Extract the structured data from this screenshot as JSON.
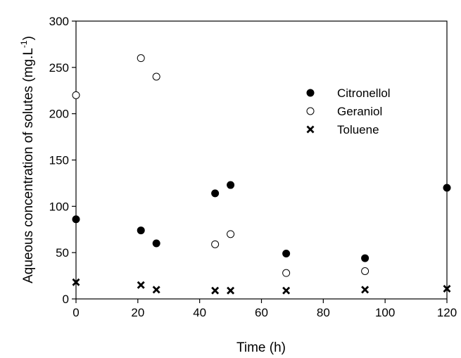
{
  "chart_data": {
    "type": "scatter",
    "title": "",
    "xlabel": "Time (h)",
    "ylabel_main": "Aqueous concentration of solutes (mg.L",
    "ylabel_sup": "-1",
    "ylabel_close": ")",
    "xlim": [
      0,
      120
    ],
    "ylim": [
      0,
      300
    ],
    "xticks": [
      0,
      20,
      40,
      60,
      80,
      100,
      120
    ],
    "yticks": [
      0,
      50,
      100,
      150,
      200,
      250,
      300
    ],
    "grid": false,
    "legend_position": "upper-right",
    "series": [
      {
        "name": "Citronellol",
        "marker": "filled-circle",
        "color": "#000000",
        "x": [
          0,
          21,
          26,
          45,
          50,
          68,
          93.5,
          120
        ],
        "y": [
          86,
          74,
          60,
          114,
          123,
          49,
          44,
          120
        ]
      },
      {
        "name": "Geraniol",
        "marker": "open-circle",
        "color": "#000000",
        "x": [
          0,
          21,
          26,
          45,
          50,
          68,
          93.5
        ],
        "y": [
          220,
          260,
          240,
          59,
          70,
          28,
          30
        ]
      },
      {
        "name": "Toluene",
        "marker": "cross",
        "color": "#000000",
        "x": [
          0,
          21,
          26,
          45,
          50,
          68,
          93.5,
          120
        ],
        "y": [
          18,
          15,
          10,
          9,
          9,
          9,
          10,
          11
        ]
      }
    ]
  }
}
